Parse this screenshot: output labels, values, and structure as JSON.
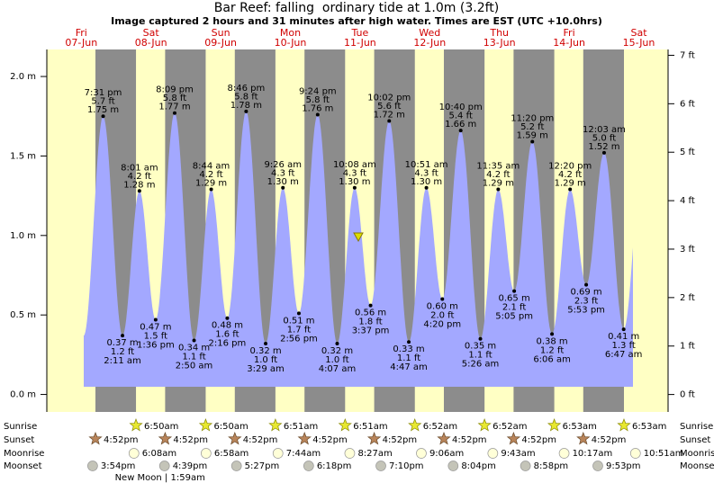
{
  "chart_data": {
    "type": "area",
    "title": "Bar Reef: falling  ordinary tide at 1.0m (3.2ft)",
    "subtitle": "Image captured 2 hours and 31 minutes after high water. Times are EST (UTC +10.0hrs)",
    "ylim": [
      -0.11,
      2.17
    ],
    "yticks": [
      {
        "value": 0,
        "label": "0.0 m"
      },
      {
        "value": 0.5,
        "label": "0.5 m"
      },
      {
        "value": 1,
        "label": "1.0 m"
      },
      {
        "value": 1.5,
        "label": "1.5 m"
      },
      {
        "value": 2,
        "label": "2.0 m"
      }
    ],
    "y2lim": [
      -0.36,
      7.12
    ],
    "y2ticks": [
      {
        "value": 0,
        "label": "0 ft"
      },
      {
        "value": 1,
        "label": "1 ft"
      },
      {
        "value": 2,
        "label": "2 ft"
      },
      {
        "value": 3,
        "label": "3 ft"
      },
      {
        "value": 4,
        "label": "4 ft"
      },
      {
        "value": 5,
        "label": "5 ft"
      },
      {
        "value": 6,
        "label": "6 ft"
      },
      {
        "value": 7,
        "label": "7 ft"
      }
    ],
    "rows": {
      "sunrise": "Sunrise",
      "sunset": "Sunset",
      "moonrise": "Moonrise",
      "moonset": "Moonset"
    },
    "days": [
      {
        "weekday": "Fri",
        "date": "07-Jun",
        "sunrise": null,
        "sunset": "4:52pm",
        "moonrise": null,
        "moonset": "3:54pm",
        "tides": [
          {
            "time": "7:31 pm",
            "value": 1.75,
            "value_label": "1.75 m",
            "ft_label": "5.7 ft"
          }
        ]
      },
      {
        "weekday": "Sat",
        "date": "08-Jun",
        "sunrise": "6:50am",
        "sunset": "4:52pm",
        "moonrise": "6:08am",
        "moonset": "4:39pm",
        "moon_phase": "New Moon | 1:59am",
        "tides": [
          {
            "time": "2:11 am",
            "value": 0.37,
            "value_label": "0.37 m",
            "ft_label": "1.2 ft"
          },
          {
            "time": "8:01 am",
            "value": 1.28,
            "value_label": "1.28 m",
            "ft_label": "4.2 ft"
          },
          {
            "time": "1:36 pm",
            "value": 0.47,
            "value_label": "0.47 m",
            "ft_label": "1.5 ft"
          },
          {
            "time": "8:09 pm",
            "value": 1.77,
            "value_label": "1.77 m",
            "ft_label": "5.8 ft"
          }
        ]
      },
      {
        "weekday": "Sun",
        "date": "09-Jun",
        "sunrise": "6:50am",
        "sunset": "4:52pm",
        "moonrise": "6:58am",
        "moonset": "5:27pm",
        "tides": [
          {
            "time": "2:50 am",
            "value": 0.34,
            "value_label": "0.34 m",
            "ft_label": "1.1 ft"
          },
          {
            "time": "8:44 am",
            "value": 1.29,
            "value_label": "1.29 m",
            "ft_label": "4.2 ft"
          },
          {
            "time": "2:16 pm",
            "value": 0.48,
            "value_label": "0.48 m",
            "ft_label": "1.6 ft"
          },
          {
            "time": "8:46 pm",
            "value": 1.78,
            "value_label": "1.78 m",
            "ft_label": "5.8 ft"
          }
        ]
      },
      {
        "weekday": "Mon",
        "date": "10-Jun",
        "sunrise": "6:51am",
        "sunset": "4:52pm",
        "moonrise": "7:44am",
        "moonset": "6:18pm",
        "tides": [
          {
            "time": "3:29 am",
            "value": 0.32,
            "value_label": "0.32 m",
            "ft_label": "1.0 ft"
          },
          {
            "time": "9:26 am",
            "value": 1.3,
            "value_label": "1.30 m",
            "ft_label": "4.3 ft"
          },
          {
            "time": "2:56 pm",
            "value": 0.51,
            "value_label": "0.51 m",
            "ft_label": "1.7 ft"
          },
          {
            "time": "9:24 pm",
            "value": 1.76,
            "value_label": "1.76 m",
            "ft_label": "5.8 ft"
          }
        ]
      },
      {
        "weekday": "Tue",
        "date": "11-Jun",
        "sunrise": "6:51am",
        "sunset": "4:52pm",
        "moonrise": "8:27am",
        "moonset": "7:10pm",
        "tides": [
          {
            "time": "4:07 am",
            "value": 0.32,
            "value_label": "0.32 m",
            "ft_label": "1.0 ft"
          },
          {
            "time": "10:08 am",
            "value": 1.3,
            "value_label": "1.30 m",
            "ft_label": "4.3 ft"
          },
          {
            "time": "3:37 pm",
            "value": 0.56,
            "value_label": "0.56 m",
            "ft_label": "1.8 ft"
          },
          {
            "time": "10:02 pm",
            "value": 1.72,
            "value_label": "1.72 m",
            "ft_label": "5.6 ft"
          }
        ]
      },
      {
        "weekday": "Wed",
        "date": "12-Jun",
        "sunrise": "6:52am",
        "sunset": "4:52pm",
        "moonrise": "9:06am",
        "moonset": "8:04pm",
        "tides": [
          {
            "time": "4:47 am",
            "value": 0.33,
            "value_label": "0.33 m",
            "ft_label": "1.1 ft"
          },
          {
            "time": "10:51 am",
            "value": 1.3,
            "value_label": "1.30 m",
            "ft_label": "4.3 ft"
          },
          {
            "time": "4:20 pm",
            "value": 0.6,
            "value_label": "0.60 m",
            "ft_label": "2.0 ft"
          },
          {
            "time": "10:40 pm",
            "value": 1.66,
            "value_label": "1.66 m",
            "ft_label": "5.4 ft"
          }
        ]
      },
      {
        "weekday": "Thu",
        "date": "13-Jun",
        "sunrise": "6:52am",
        "sunset": "4:52pm",
        "moonrise": "9:43am",
        "moonset": "8:58pm",
        "tides": [
          {
            "time": "5:26 am",
            "value": 0.35,
            "value_label": "0.35 m",
            "ft_label": "1.1 ft"
          },
          {
            "time": "11:35 am",
            "value": 1.29,
            "value_label": "1.29 m",
            "ft_label": "4.2 ft"
          },
          {
            "time": "5:05 pm",
            "value": 0.65,
            "value_label": "0.65 m",
            "ft_label": "2.1 ft"
          },
          {
            "time": "11:20 pm",
            "value": 1.59,
            "value_label": "1.59 m",
            "ft_label": "5.2 ft"
          }
        ]
      },
      {
        "weekday": "Fri",
        "date": "14-Jun",
        "sunrise": "6:53am",
        "sunset": "4:52pm",
        "moonrise": "10:17am",
        "moonset": "9:53pm",
        "tides": [
          {
            "time": "6:06 am",
            "value": 0.38,
            "value_label": "0.38 m",
            "ft_label": "1.2 ft"
          },
          {
            "time": "12:20 pm",
            "value": 1.29,
            "value_label": "1.29 m",
            "ft_label": "4.2 ft"
          },
          {
            "time": "5:53 pm",
            "value": 0.69,
            "value_label": "0.69 m",
            "ft_label": "2.3 ft"
          }
        ]
      },
      {
        "weekday": "Sat",
        "date": "15-Jun",
        "sunrise": "6:53am",
        "sunset": null,
        "moonrise": "10:51am",
        "moonset": null,
        "tides": [
          {
            "time": "12:03 am",
            "value": 1.52,
            "value_label": "1.52 m",
            "ft_label": "5.0 ft"
          },
          {
            "time": "6:47 am",
            "value": 0.41,
            "value_label": "0.41 m",
            "ft_label": "1.3 ft"
          }
        ]
      }
    ]
  }
}
